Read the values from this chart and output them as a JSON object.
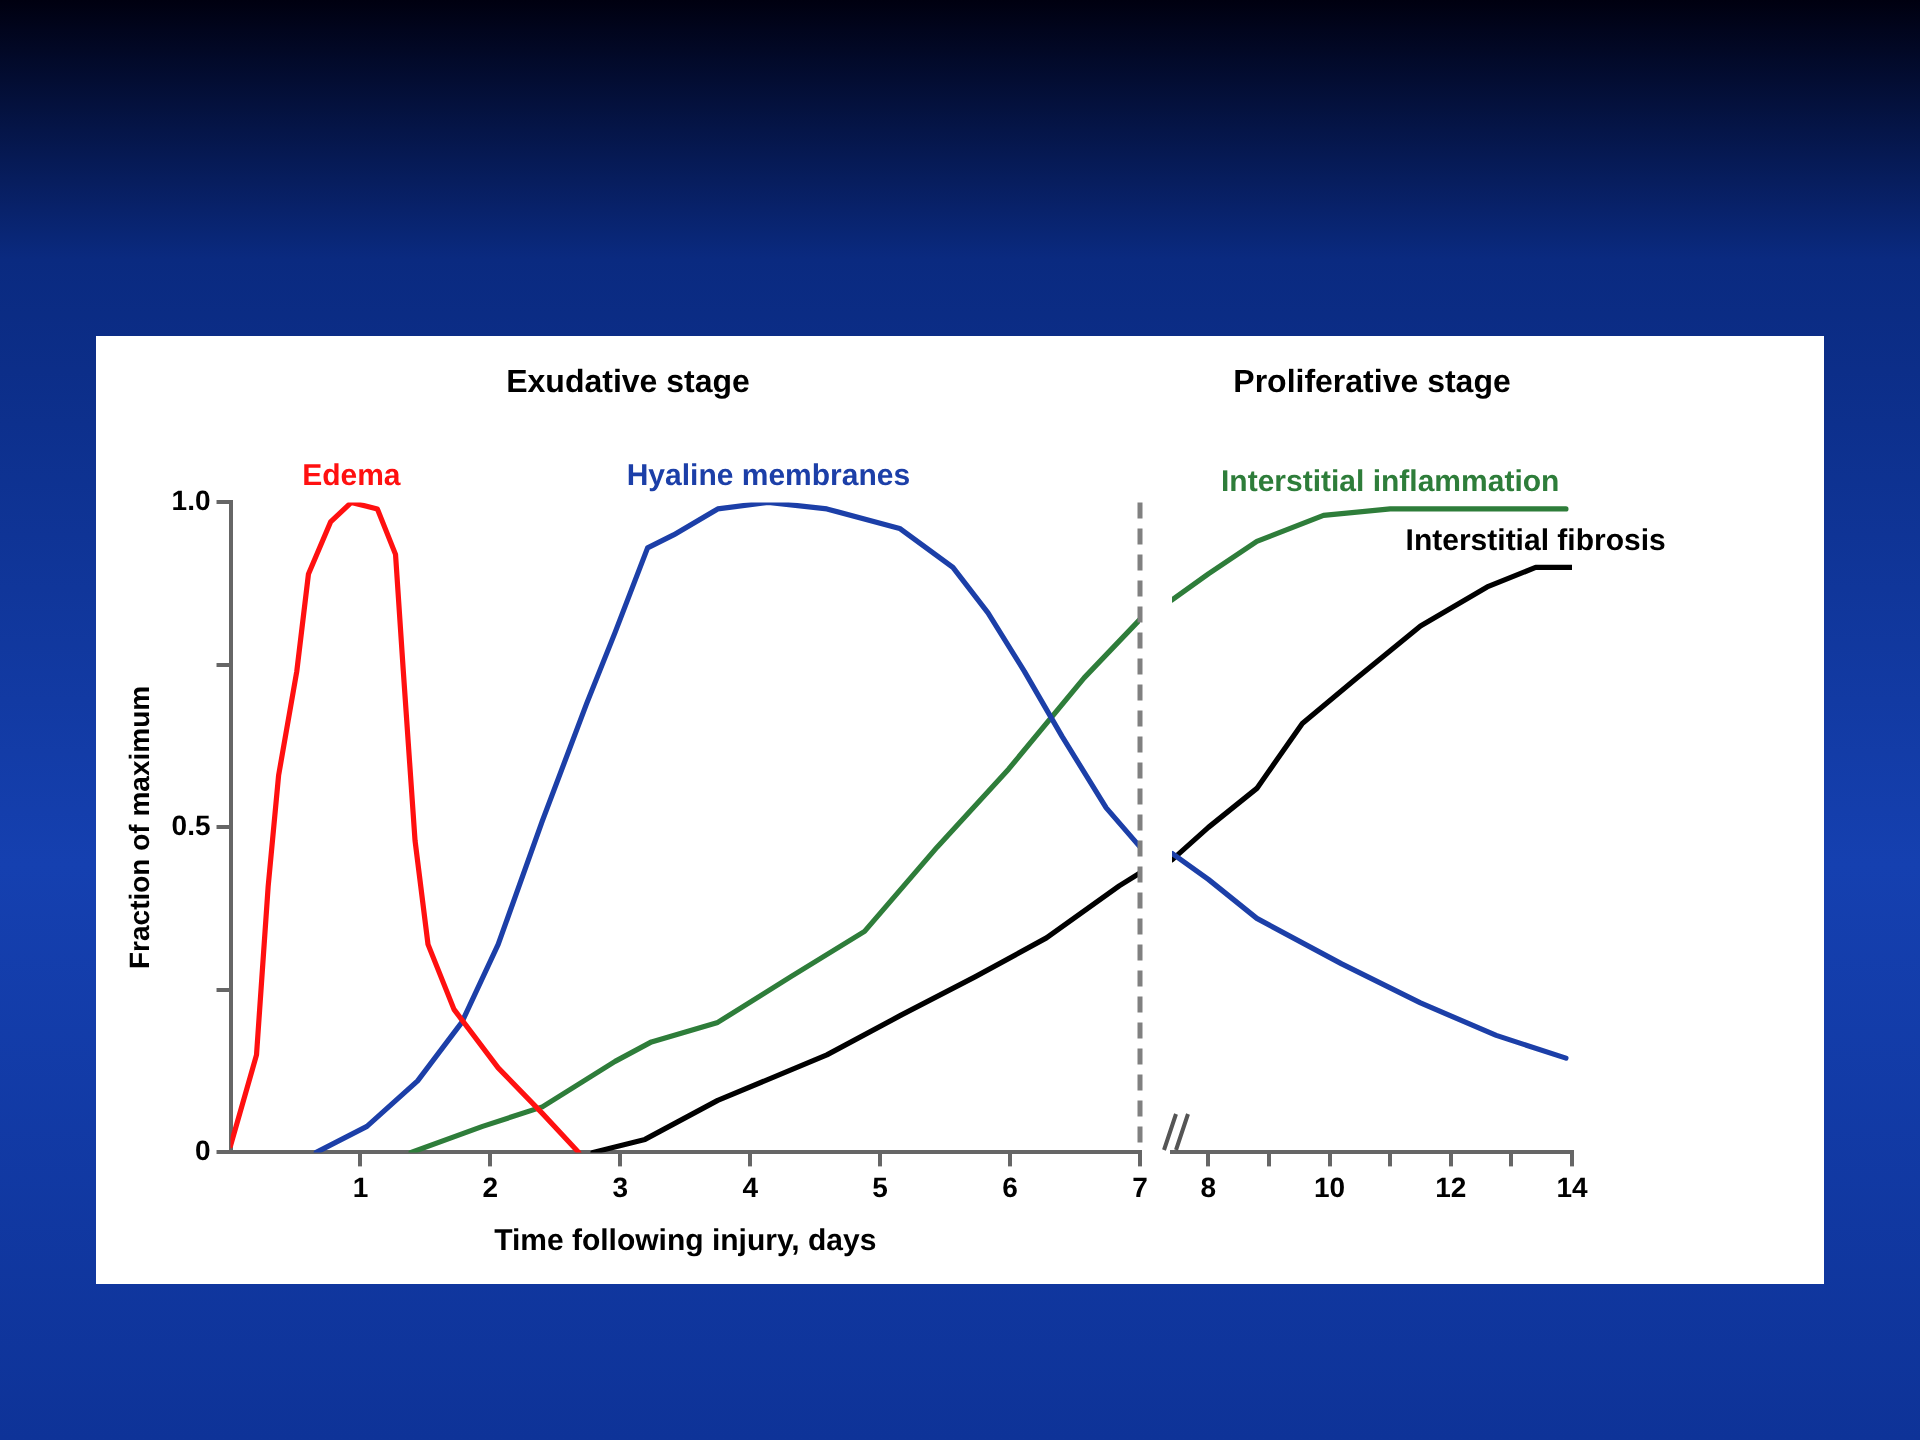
{
  "chart_data": [
    {
      "type": "line",
      "title": "Exudative stage",
      "xlabel": "Time following injury, days",
      "ylabel": "Fraction of maximum",
      "xlim": [
        0,
        7
      ],
      "xticks": [
        1,
        2,
        3,
        4,
        5,
        6,
        7
      ],
      "ylim": [
        0,
        1
      ],
      "yticks": [
        0,
        {
          "value": 0.25,
          "label": null
        },
        0.5,
        {
          "value": 0.75,
          "label": null
        },
        {
          "value": 1,
          "label": "1.0"
        }
      ],
      "grid": false,
      "legend": false,
      "marker": "none",
      "line_style": "solid",
      "ref_lines": [
        {
          "axis": "x",
          "value": 7,
          "color": "#808080",
          "line_style": "dashed"
        }
      ],
      "series": [
        {
          "name": "Edema",
          "color": "#ff1010",
          "x": [
            0,
            0.2,
            0.29,
            0.37,
            0.51,
            0.6,
            0.77,
            0.93,
            1.13,
            1.27,
            1.33,
            1.42,
            1.52,
            1.72,
            2.06,
            2.4,
            2.68
          ],
          "values": [
            0.01,
            0.15,
            0.41,
            0.58,
            0.74,
            0.89,
            0.97,
            1.0,
            0.99,
            0.92,
            0.74,
            0.48,
            0.32,
            0.22,
            0.13,
            0.06,
            0
          ]
        },
        {
          "name": "Hyaline membranes",
          "color": "#1c3fa8",
          "x": [
            0.66,
            1.05,
            1.44,
            1.78,
            2.06,
            2.4,
            2.74,
            2.96,
            3.21,
            3.41,
            3.75,
            4.14,
            4.59,
            5.15,
            5.56,
            5.83,
            6.11,
            6.4,
            6.74,
            7
          ],
          "values": [
            0,
            0.04,
            0.11,
            0.2,
            0.32,
            0.51,
            0.69,
            0.8,
            0.93,
            0.95,
            0.99,
            1.0,
            0.99,
            0.96,
            0.9,
            0.83,
            0.74,
            0.64,
            0.53,
            0.47
          ]
        },
        {
          "color": "#2e7d3a",
          "x": [
            1.39,
            1.94,
            2.4,
            2.96,
            3.24,
            3.75,
            4.31,
            4.88,
            5.44,
            5.99,
            6.57,
            7
          ],
          "values": [
            0,
            0.04,
            0.07,
            0.14,
            0.17,
            0.2,
            0.27,
            0.34,
            0.47,
            0.59,
            0.73,
            0.82
          ]
        },
        {
          "color": "#000000",
          "x": [
            2.79,
            3.19,
            3.75,
            4.59,
            5.15,
            5.73,
            6.28,
            6.84,
            7
          ],
          "values": [
            0,
            0.02,
            0.08,
            0.15,
            0.21,
            0.27,
            0.33,
            0.41,
            0.43
          ]
        }
      ]
    },
    {
      "type": "line",
      "title": "Proliferative stage",
      "xlim": [
        7.4,
        14
      ],
      "xticks": [
        8,
        {
          "value": 9,
          "label": null
        },
        10,
        {
          "value": 11,
          "label": null
        },
        12,
        {
          "value": 13,
          "label": null
        },
        14
      ],
      "ylim": [
        0,
        1
      ],
      "tick_labels": "x",
      "grid": false,
      "legend": false,
      "marker": "none",
      "line_style": "solid",
      "series": [
        {
          "color": "#1c3fa8",
          "x": [
            7.4,
            8,
            8.8,
            10.2,
            11.5,
            12.75,
            13.9
          ],
          "values": [
            0.46,
            0.42,
            0.36,
            0.29,
            0.23,
            0.18,
            0.145
          ]
        },
        {
          "name": "Interstitial inflammation",
          "color": "#2e7d3a",
          "x": [
            7.4,
            8,
            8.8,
            9.9,
            11,
            12.1,
            13.9
          ],
          "values": [
            0.85,
            0.89,
            0.94,
            0.98,
            0.99,
            0.99,
            0.99
          ]
        },
        {
          "name": "Interstitial fibrosis",
          "color": "#000000",
          "x": [
            7.4,
            8,
            8.8,
            9.55,
            10.45,
            11.5,
            12.6,
            13.4,
            14
          ],
          "values": [
            0.45,
            0.5,
            0.56,
            0.66,
            0.73,
            0.81,
            0.87,
            0.9,
            0.9
          ]
        }
      ]
    }
  ]
}
